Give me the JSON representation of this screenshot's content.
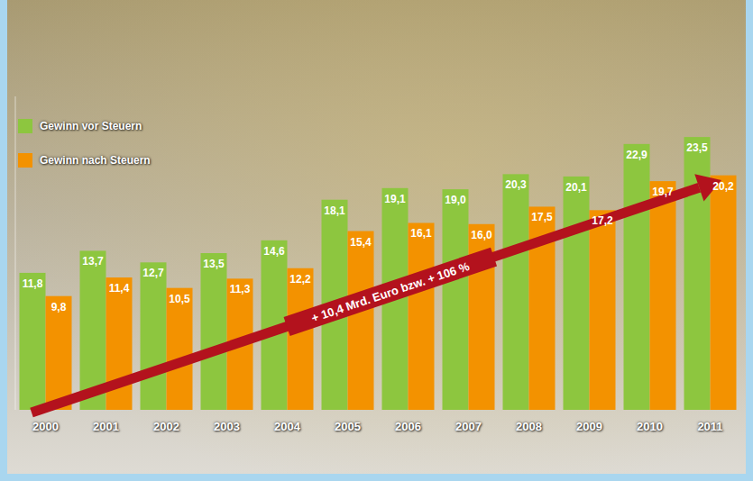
{
  "chart_data": {
    "type": "bar",
    "categories": [
      "2000",
      "2001",
      "2002",
      "2003",
      "2004",
      "2005",
      "2006",
      "2007",
      "2008",
      "2009",
      "2010",
      "2011"
    ],
    "series": [
      {
        "name": "Gewinn vor Steuern",
        "color": "#8dc63f",
        "values": [
          11.8,
          13.7,
          12.7,
          13.5,
          14.6,
          18.1,
          19.1,
          19.0,
          20.3,
          20.1,
          22.9,
          23.5
        ],
        "value_labels": [
          "11,8",
          "13,7",
          "12,7",
          "13,5",
          "14,6",
          "18,1",
          "19,1",
          "19,0",
          "20,3",
          "20,1",
          "22,9",
          "23,5"
        ]
      },
      {
        "name": "Gewinn nach Steuern",
        "color": "#f39200",
        "values": [
          9.8,
          11.4,
          10.5,
          11.3,
          12.2,
          15.4,
          16.1,
          16.0,
          17.5,
          17.2,
          19.7,
          20.2
        ],
        "value_labels": [
          "9,8",
          "11,4",
          "10,5",
          "11,3",
          "12,2",
          "15,4",
          "16,1",
          "16,0",
          "17,5",
          "17,2",
          "19,7",
          "20,2"
        ]
      }
    ],
    "ylim": [
      0,
      27
    ],
    "data_labels": true,
    "tick_labels": "x",
    "legend": "top-left",
    "annotations": [
      "+ 10,4 Mrd. Euro bzw. + 106 %"
    ]
  }
}
